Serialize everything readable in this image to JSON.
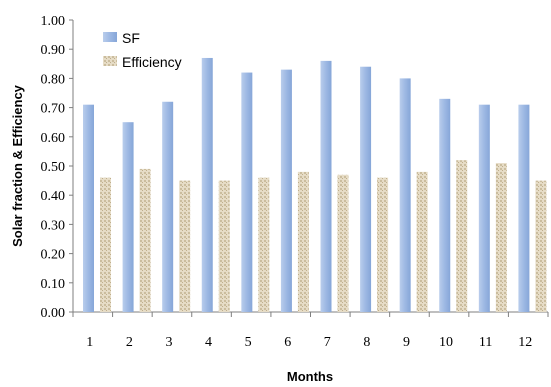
{
  "chart_data": {
    "type": "bar",
    "categories": [
      "1",
      "2",
      "3",
      "4",
      "5",
      "6",
      "7",
      "8",
      "9",
      "10",
      "11",
      "12"
    ],
    "series": [
      {
        "name": "SF",
        "values": [
          0.71,
          0.65,
          0.72,
          0.87,
          0.82,
          0.83,
          0.86,
          0.84,
          0.8,
          0.73,
          0.71,
          0.71
        ],
        "color": "#9db8e3"
      },
      {
        "name": "Efficiency",
        "values": [
          0.46,
          0.49,
          0.45,
          0.45,
          0.46,
          0.48,
          0.47,
          0.46,
          0.48,
          0.52,
          0.51,
          0.45
        ],
        "color": "#d9cdb4"
      }
    ],
    "title": "",
    "xlabel": "Months",
    "ylabel": "Solar fraction & Efficiency",
    "ylim": [
      0,
      1.0
    ],
    "yticks": [
      "0.00",
      "0.10",
      "0.20",
      "0.30",
      "0.40",
      "0.50",
      "0.60",
      "0.70",
      "0.80",
      "0.90",
      "1.00"
    ],
    "legend_position": "top-left",
    "grid": false
  }
}
